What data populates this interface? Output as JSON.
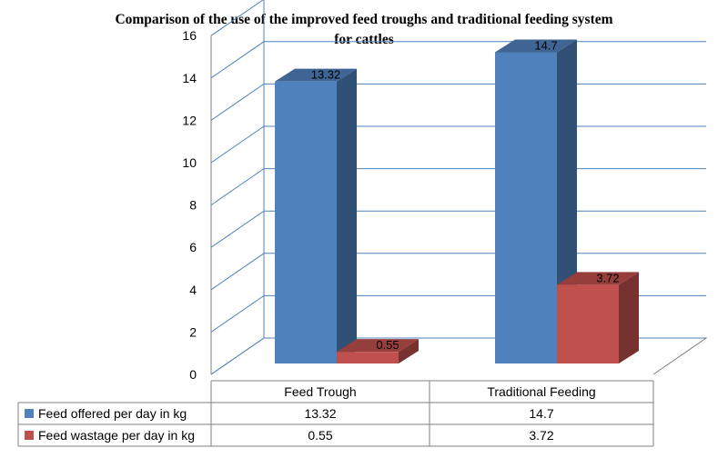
{
  "chart_data": {
    "type": "bar",
    "title_line1": "Comparison of the use of the improved feed troughs and traditional feeding system",
    "title_line2": "for cattles",
    "categories": [
      "Feed Trough",
      "Traditional Feeding"
    ],
    "series": [
      {
        "name": "Feed offered per day in kg",
        "values": [
          13.32,
          14.7
        ],
        "color": "#4F81BD",
        "value_labels": [
          "13.32",
          "14.7"
        ],
        "table_values": [
          "13.32",
          "14.7"
        ]
      },
      {
        "name": "Feed wastage per day in kg",
        "values": [
          0.55,
          3.72
        ],
        "color": "#C0504D",
        "value_labels": [
          "0.55",
          "3.72"
        ],
        "table_values": [
          "0.55",
          "3.72"
        ]
      }
    ],
    "ylim": [
      0,
      16
    ],
    "yticks": [
      "0",
      "2",
      "4",
      "6",
      "8",
      "10",
      "12",
      "14",
      "16"
    ],
    "grid": true,
    "style": "3d-clustered-column",
    "legend": "data-table-below"
  }
}
